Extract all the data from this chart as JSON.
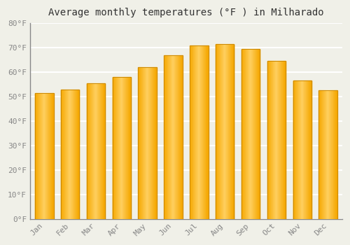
{
  "title": "Average monthly temperatures (°F ) in Milharado",
  "categories": [
    "Jan",
    "Feb",
    "Mar",
    "Apr",
    "May",
    "Jun",
    "Jul",
    "Aug",
    "Sep",
    "Oct",
    "Nov",
    "Dec"
  ],
  "values": [
    51.5,
    53.0,
    55.5,
    58.0,
    62.0,
    67.0,
    71.0,
    71.5,
    69.5,
    64.5,
    56.5,
    52.5
  ],
  "bar_color_center": "#FFD060",
  "bar_color_edge": "#F5A800",
  "ylim": [
    0,
    80
  ],
  "yticks": [
    0,
    10,
    20,
    30,
    40,
    50,
    60,
    70,
    80
  ],
  "ytick_labels": [
    "0°F",
    "10°F",
    "20°F",
    "30°F",
    "40°F",
    "50°F",
    "60°F",
    "70°F",
    "80°F"
  ],
  "background_color": "#f0f0e8",
  "grid_color": "#ffffff",
  "title_fontsize": 10,
  "tick_fontsize": 8,
  "bar_border_color": "#CC8800",
  "font_family": "monospace"
}
